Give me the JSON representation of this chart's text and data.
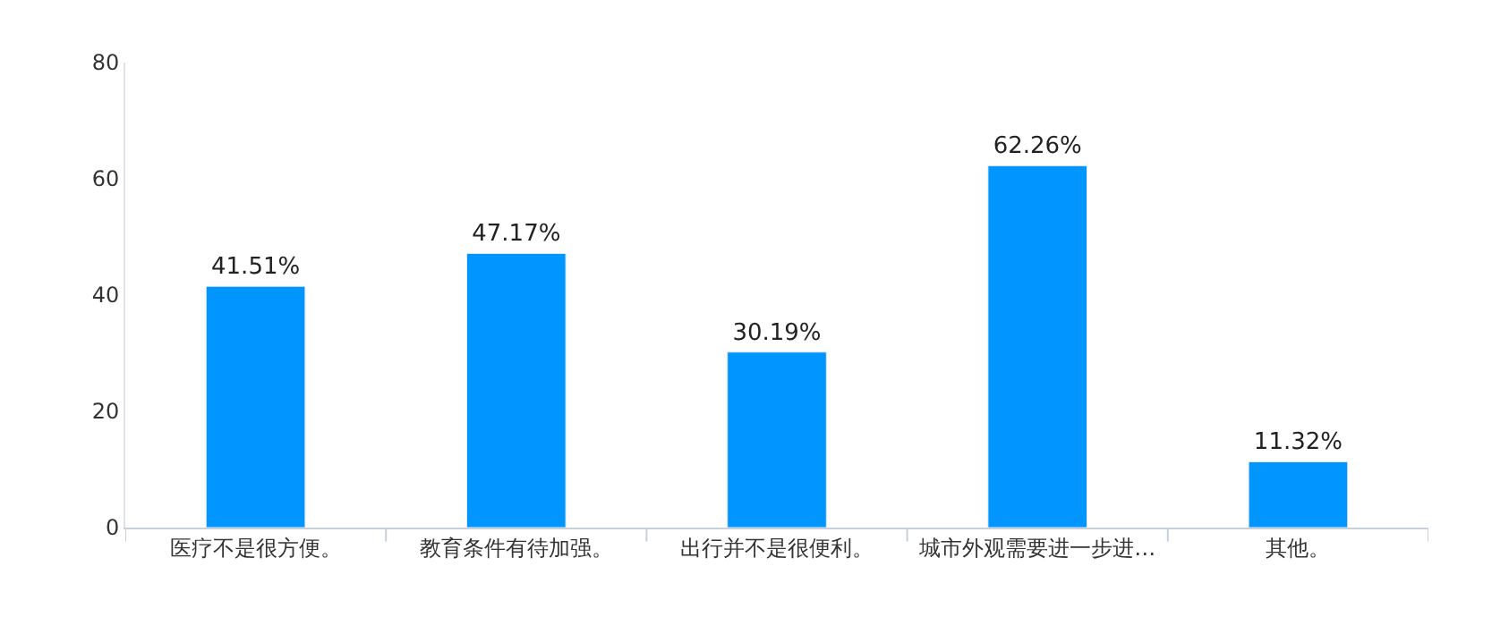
{
  "chart_data": {
    "type": "bar",
    "categories": [
      "医疗不是很方便。",
      "教育条件有待加强。",
      "出行并不是很便利。",
      "城市外观需要进一步进…",
      "其他。"
    ],
    "values": [
      41.51,
      47.17,
      30.19,
      62.26,
      11.32
    ],
    "value_labels": [
      "41.51%",
      "47.17%",
      "30.19%",
      "62.26%",
      "11.32%"
    ],
    "color": "#0095ff",
    "ylim": [
      0,
      80
    ],
    "yticks": [
      0,
      20,
      40,
      60,
      80
    ]
  }
}
